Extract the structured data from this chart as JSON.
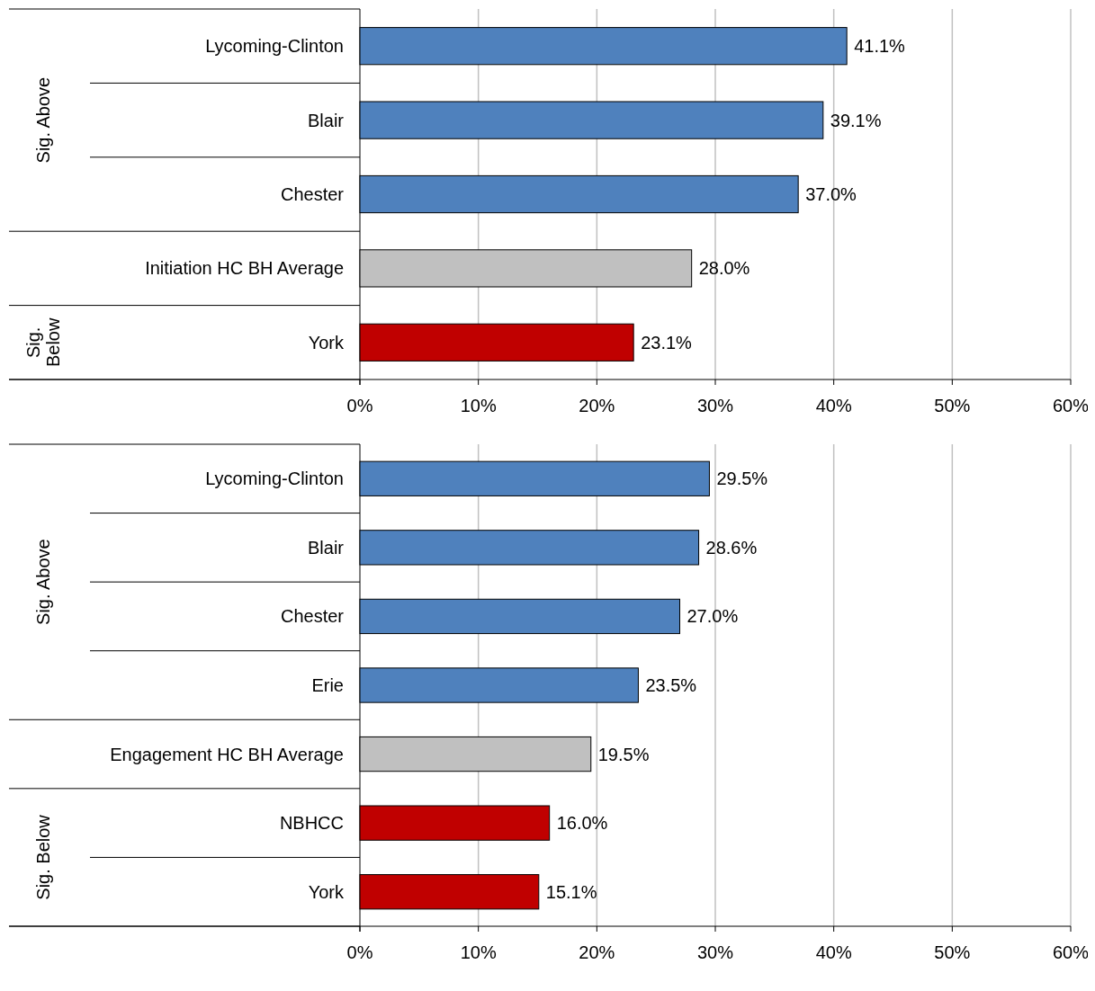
{
  "chart_data": [
    {
      "type": "bar",
      "orientation": "horizontal",
      "categories": [
        "Lycoming-Clinton",
        "Blair",
        "Chester",
        "Initiation HC BH Average",
        "York"
      ],
      "values": [
        41.1,
        39.1,
        37.0,
        28.0,
        23.1
      ],
      "colors": [
        "#4f81bd",
        "#4f81bd",
        "#4f81bd",
        "#c0c0c0",
        "#c00000"
      ],
      "value_labels": [
        "41.1%",
        "39.1%",
        "37.0%",
        "28.0%",
        "23.1%"
      ],
      "xlim": [
        0,
        60
      ],
      "xticks": [
        {
          "value": 0,
          "label": "0%"
        },
        {
          "value": 10,
          "label": "10%"
        },
        {
          "value": 20,
          "label": "20%"
        },
        {
          "value": 30,
          "label": "30%"
        },
        {
          "value": 40,
          "label": "40%"
        },
        {
          "value": 50,
          "label": "50%"
        },
        {
          "value": 60,
          "label": "60%"
        }
      ],
      "grid": "x",
      "annotations": [
        "Sig. Above",
        "Sig.\nBelow"
      ]
    },
    {
      "type": "bar",
      "orientation": "horizontal",
      "categories": [
        "Lycoming-Clinton",
        "Blair",
        "Chester",
        "Erie",
        "Engagement HC BH Average",
        "NBHCC",
        "York"
      ],
      "values": [
        29.5,
        28.6,
        27.0,
        23.5,
        19.5,
        16.0,
        15.1
      ],
      "colors": [
        "#4f81bd",
        "#4f81bd",
        "#4f81bd",
        "#4f81bd",
        "#c0c0c0",
        "#c00000",
        "#c00000"
      ],
      "value_labels": [
        "29.5%",
        "28.6%",
        "27.0%",
        "23.5%",
        "19.5%",
        "16.0%",
        "15.1%"
      ],
      "xlim": [
        0,
        60
      ],
      "xticks": [
        {
          "value": 0,
          "label": "0%"
        },
        {
          "value": 10,
          "label": "10%"
        },
        {
          "value": 20,
          "label": "20%"
        },
        {
          "value": 30,
          "label": "30%"
        },
        {
          "value": 40,
          "label": "40%"
        },
        {
          "value": 50,
          "label": "50%"
        },
        {
          "value": 60,
          "label": "60%"
        }
      ],
      "grid": "x",
      "annotations": [
        "Sig. Above",
        "Sig. Below"
      ]
    }
  ]
}
